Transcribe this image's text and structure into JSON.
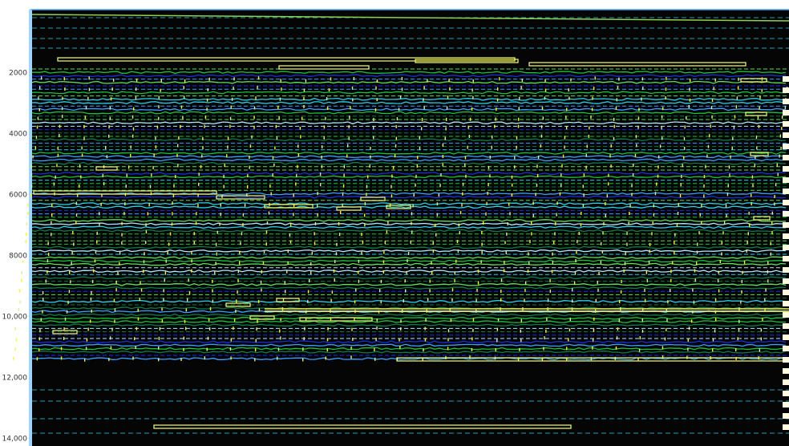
{
  "y_axis": {
    "labels": [
      "2000",
      "4000",
      "6000",
      "8000",
      "10,000",
      "12,000",
      "14,000"
    ]
  }
}
